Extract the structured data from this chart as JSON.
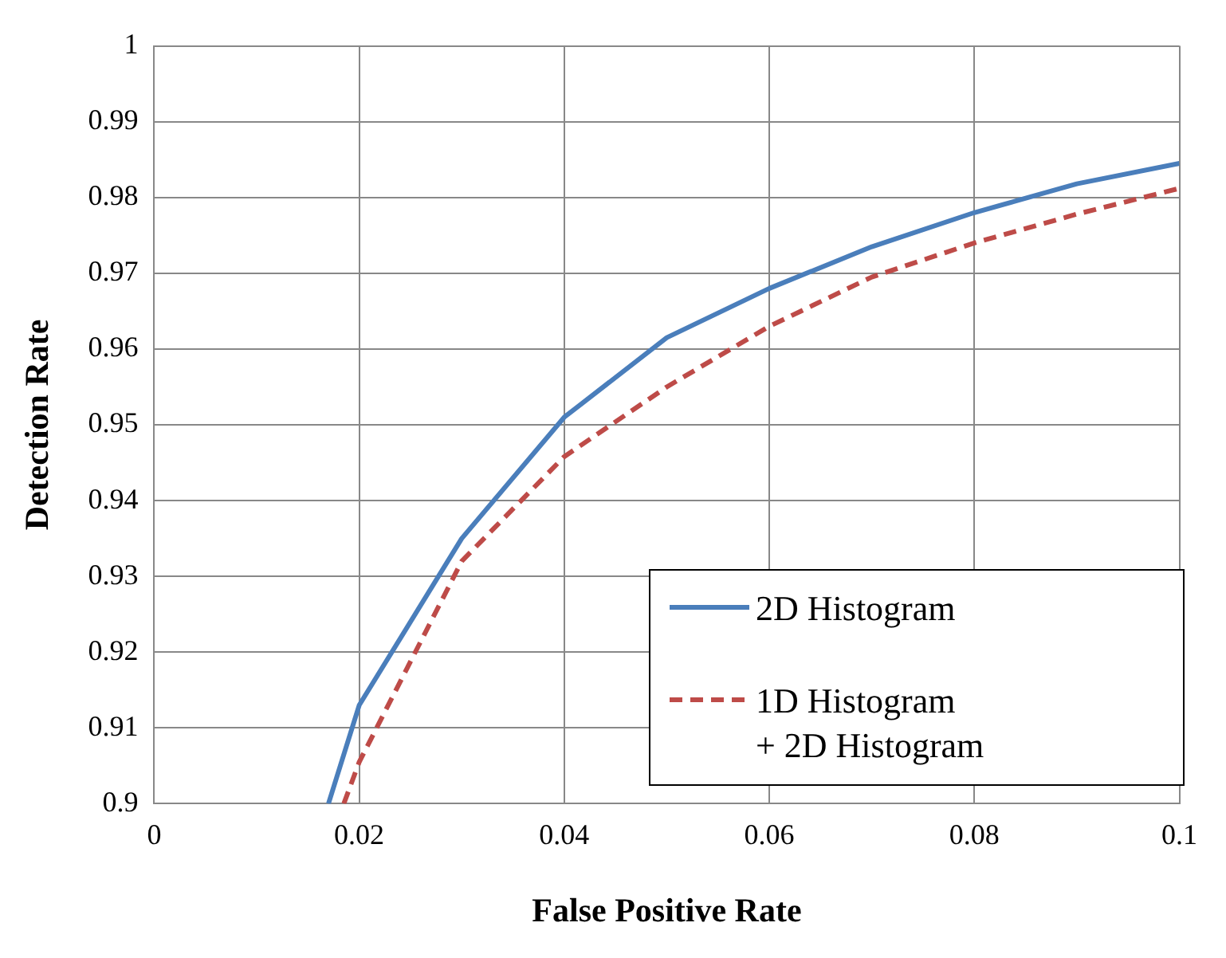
{
  "chart_data": {
    "type": "line",
    "xlabel": "False Positive Rate",
    "ylabel": "Detection Rate",
    "xlim": [
      0,
      0.1
    ],
    "xticks": [
      0,
      0.02,
      0.04,
      0.06,
      0.08,
      0.1
    ],
    "ylim": [
      0.9,
      1
    ],
    "yticks": [
      0.9,
      0.91,
      0.92,
      0.93,
      0.94,
      0.95,
      0.96,
      0.97,
      0.98,
      0.99,
      1
    ],
    "grid": true,
    "legend": "bottom right",
    "marker": "none",
    "series": [
      {
        "name": "2D Histogram",
        "color": "#4a7ebb",
        "line_style": "solid",
        "x": [
          0.017,
          0.02,
          0.03,
          0.04,
          0.05,
          0.06,
          0.07,
          0.08,
          0.09,
          0.1
        ],
        "values": [
          0.9,
          0.913,
          0.935,
          0.951,
          0.9615,
          0.968,
          0.9735,
          0.978,
          0.9818,
          0.9845
        ]
      },
      {
        "name": "1D Histogram + 2D Histogram",
        "color": "#be4b48",
        "line_style": "dashed",
        "x": [
          0.0185,
          0.02,
          0.03,
          0.04,
          0.05,
          0.06,
          0.07,
          0.08,
          0.09,
          0.1
        ],
        "values": [
          0.9,
          0.9055,
          0.932,
          0.9458,
          0.955,
          0.963,
          0.9695,
          0.974,
          0.9778,
          0.9812
        ]
      }
    ]
  }
}
